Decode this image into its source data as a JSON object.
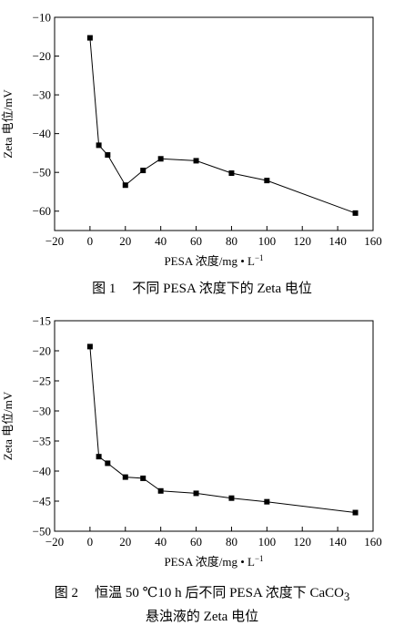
{
  "chart_data": [
    {
      "type": "line",
      "xlabel": "PESA 浓度/mg • L",
      "xlabel_sup": "−1",
      "ylabel": "Zeta 电位/mV",
      "xlim": [
        -20,
        160
      ],
      "ylim": [
        -65,
        -10
      ],
      "xticks": [
        -20,
        0,
        20,
        40,
        60,
        80,
        100,
        120,
        140,
        160
      ],
      "yticks": [
        -10,
        -20,
        -30,
        -40,
        -50,
        -60
      ],
      "marker": "square",
      "x": [
        0,
        5,
        10,
        20,
        30,
        40,
        60,
        80,
        100,
        150
      ],
      "y": [
        -15.3,
        -43,
        -45.5,
        -53.3,
        -49.5,
        -46.5,
        -47,
        -50.2,
        -52.1,
        -60.5
      ],
      "caption": {
        "number": "图 1",
        "text": "不同 PESA 浓度下的 Zeta 电位"
      }
    },
    {
      "type": "line",
      "xlabel": "PESA 浓度/mg • L",
      "xlabel_sup": "−1",
      "ylabel": "Zeta 电位/mV",
      "xlim": [
        -20,
        160
      ],
      "ylim": [
        -50,
        -15
      ],
      "xticks": [
        -20,
        0,
        20,
        40,
        60,
        80,
        100,
        120,
        140,
        160
      ],
      "yticks": [
        -15,
        -20,
        -25,
        -30,
        -35,
        -40,
        -45,
        -50
      ],
      "marker": "square",
      "x": [
        0,
        5,
        10,
        20,
        30,
        40,
        60,
        80,
        100,
        150
      ],
      "y": [
        -19.3,
        -37.6,
        -38.7,
        -41,
        -41.2,
        -43.3,
        -43.7,
        -44.5,
        -45.1,
        -46.9
      ],
      "caption": {
        "number": "图 2",
        "line1_text": "恒温 50 ℃10 h 后不同 PESA 浓度下 CaCO",
        "line1_sub": "3",
        "line2_text": "悬浊液的 Zeta 电位"
      }
    }
  ]
}
